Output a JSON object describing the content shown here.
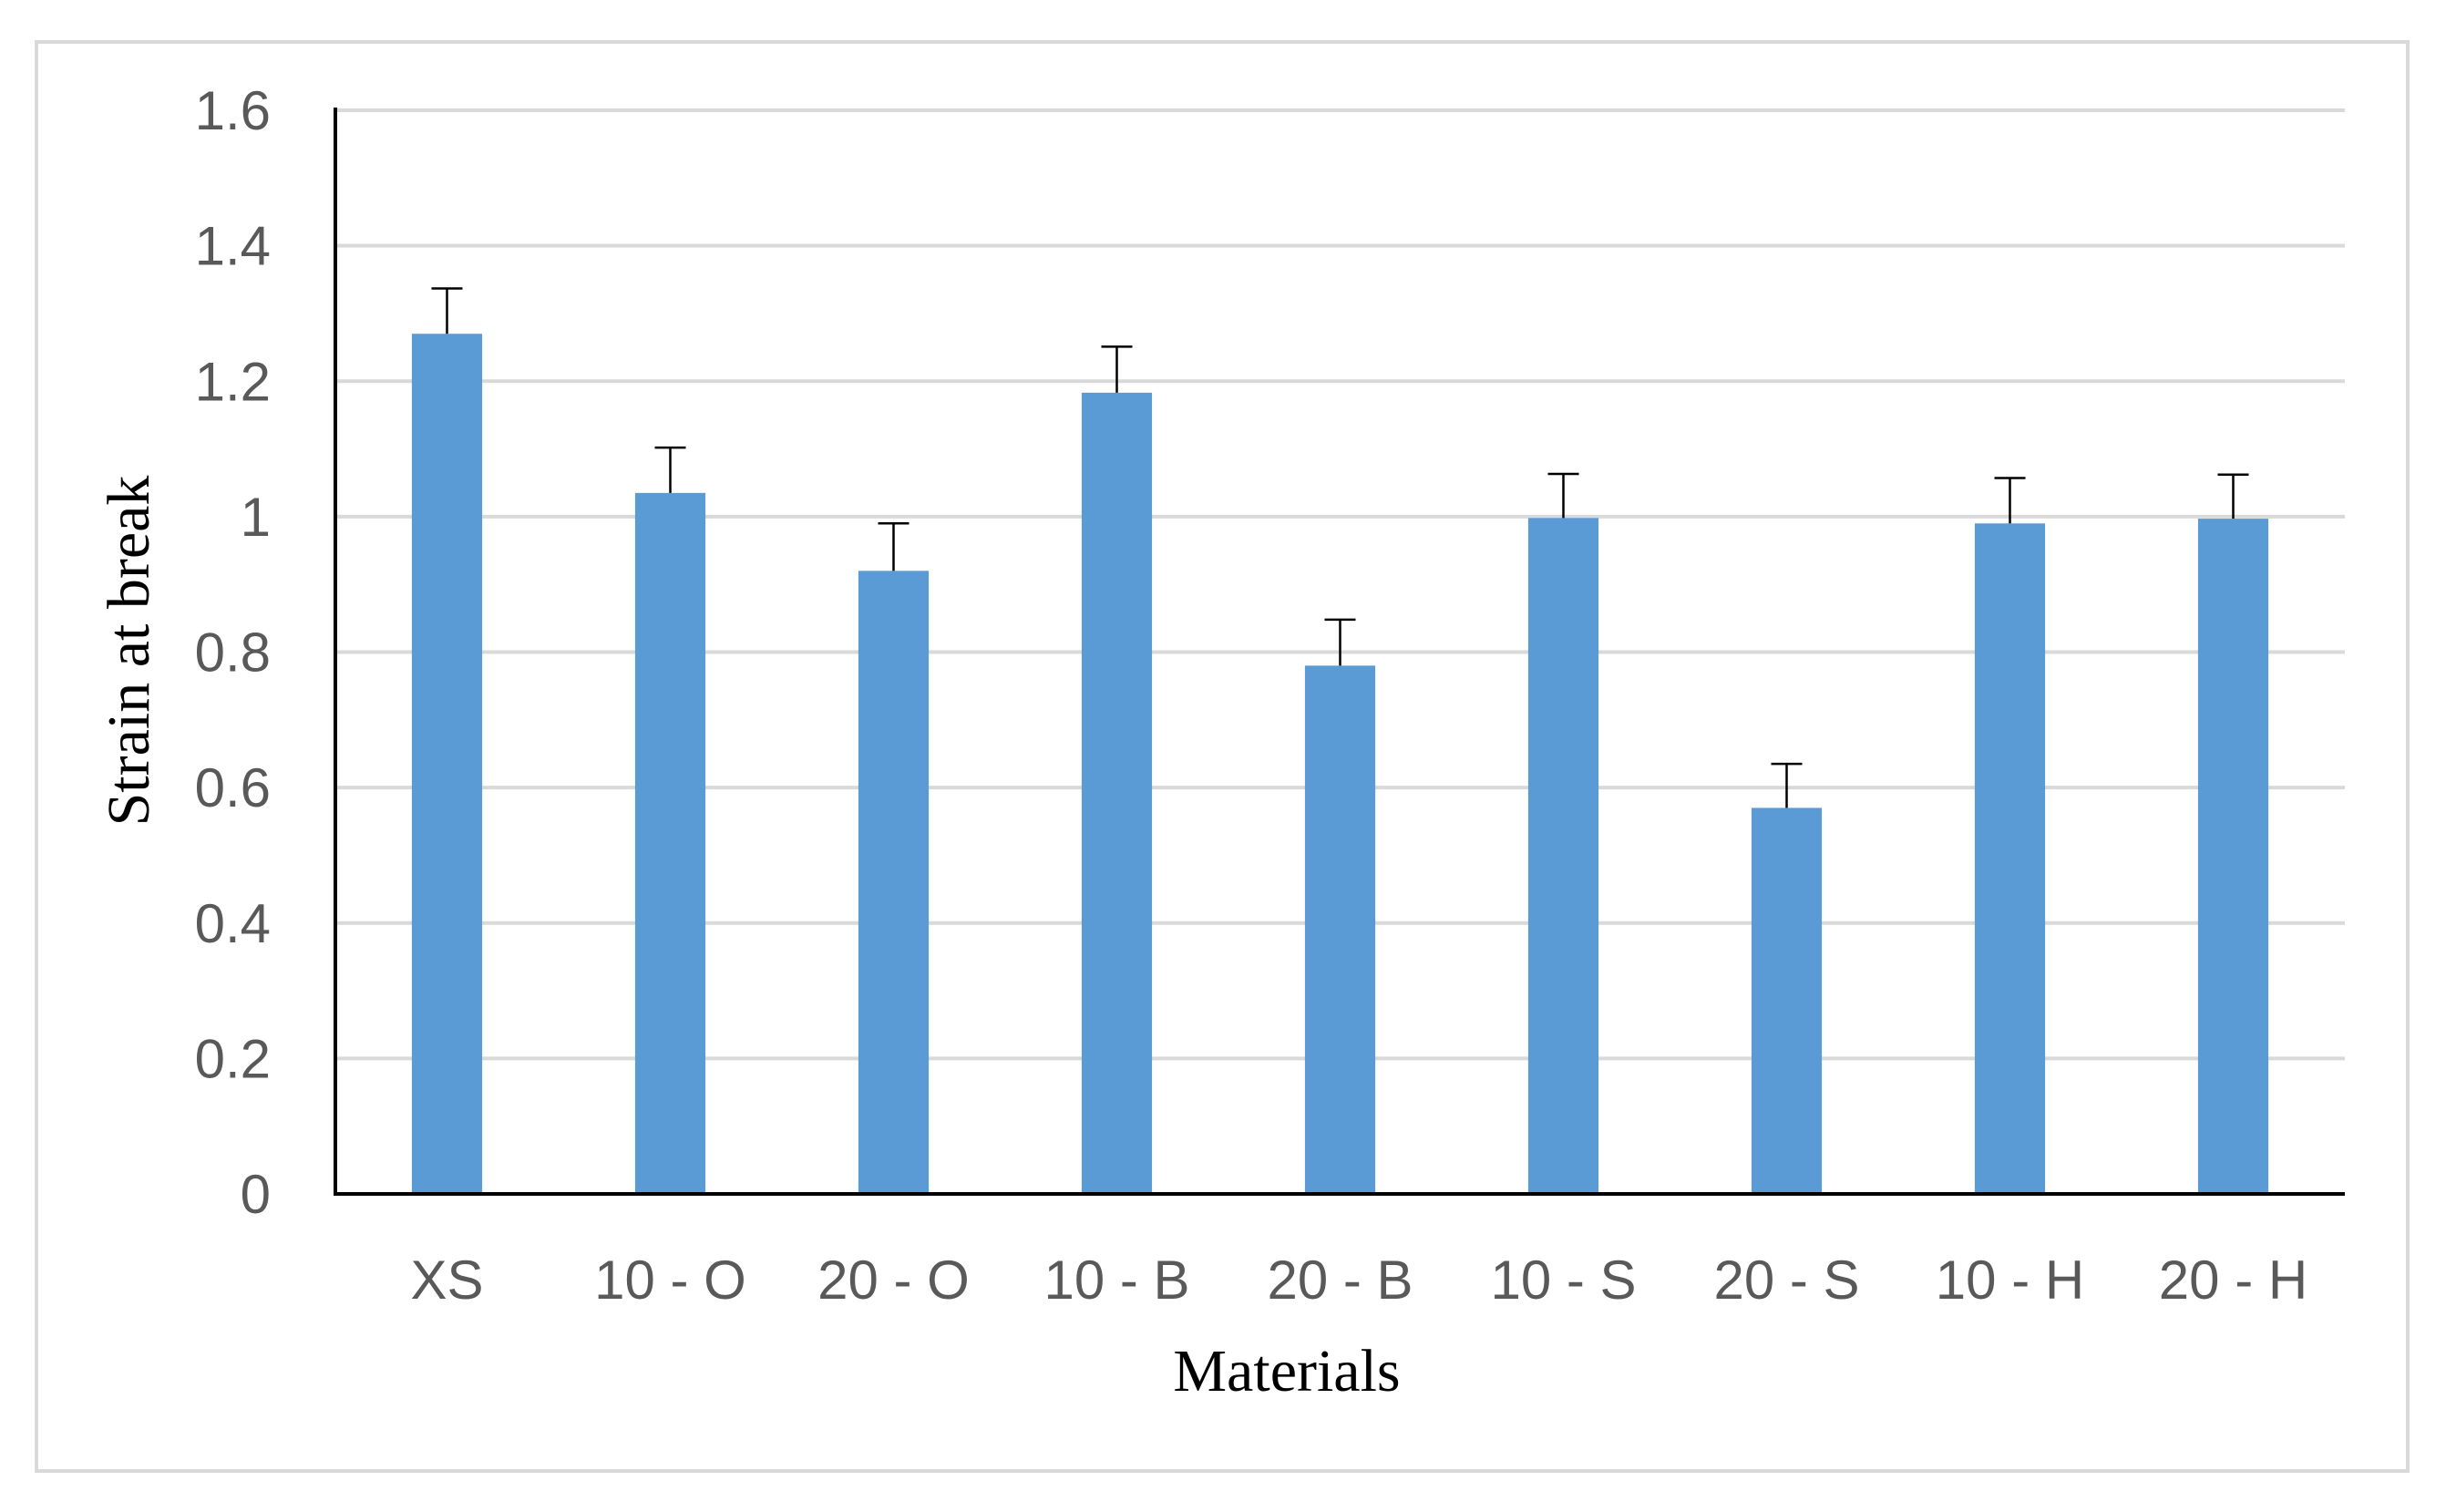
{
  "chart_data": {
    "type": "bar",
    "title": "",
    "xlabel": "Materials",
    "ylabel": "Strain at break",
    "categories": [
      "XS",
      "10 - O",
      "20 - O",
      "10 - B",
      "20 - B",
      "10 - S",
      "20 - S",
      "10 - H",
      "20 - H"
    ],
    "values": [
      1.27,
      1.035,
      0.92,
      1.183,
      0.78,
      0.998,
      0.57,
      0.99,
      0.997
    ],
    "error_plus": [
      0.067,
      0.067,
      0.07,
      0.068,
      0.068,
      0.065,
      0.065,
      0.067,
      0.065
    ],
    "ylim": [
      0,
      1.6
    ],
    "yticks": [
      0,
      0.2,
      0.4,
      0.6,
      0.8,
      1,
      1.2,
      1.4,
      1.6
    ],
    "ytick_labels": [
      "0",
      "0.2",
      "0.4",
      "0.6",
      "0.8",
      "1",
      "1.2",
      "1.4",
      "1.6"
    ],
    "grid": true,
    "bar_color": "#5b9bd5",
    "gridline_color": "#d9d9d9",
    "legend": "none"
  }
}
